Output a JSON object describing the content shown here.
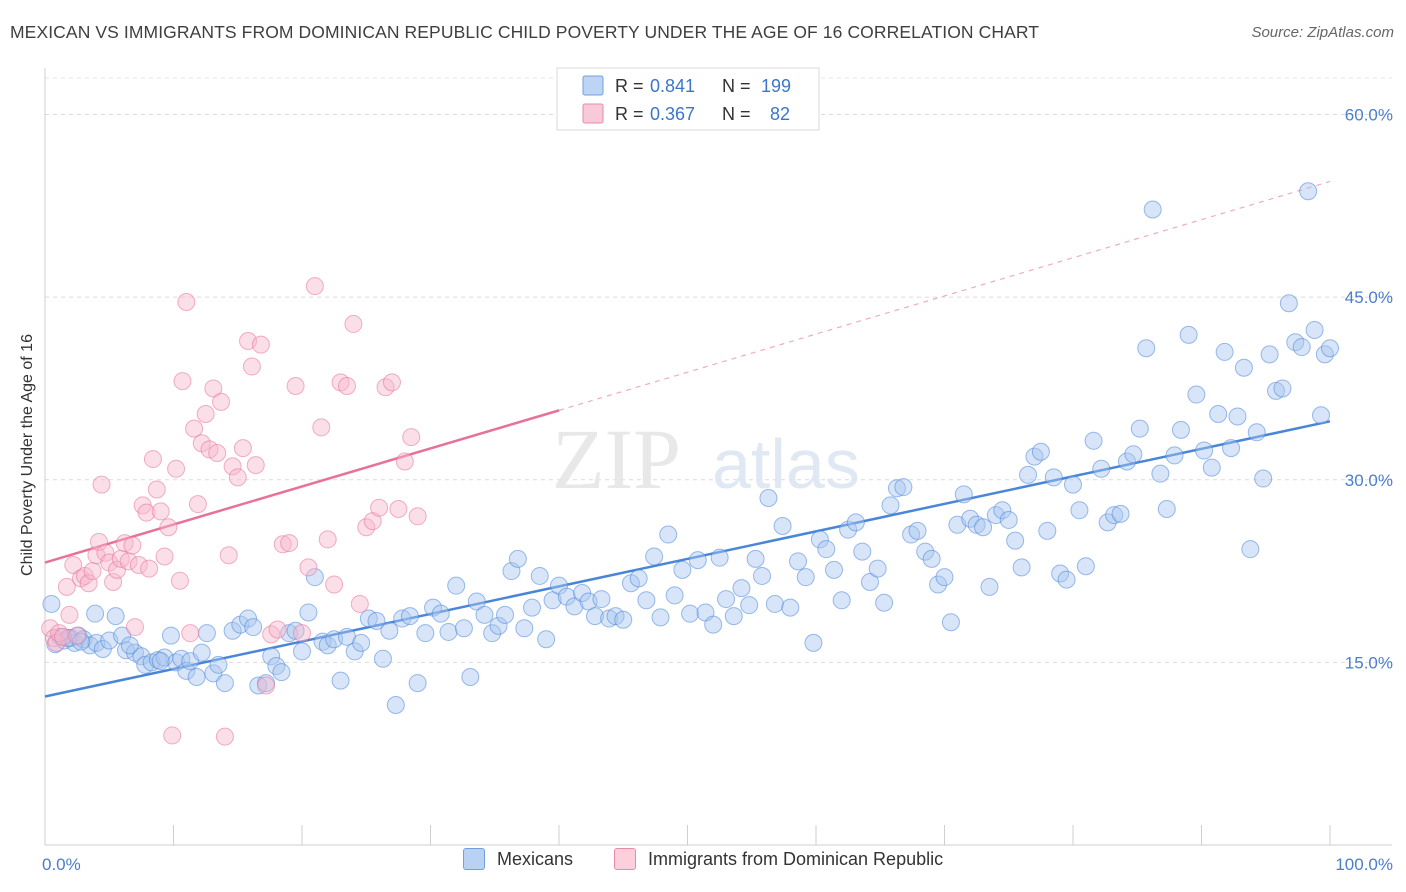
{
  "title": "MEXICAN VS IMMIGRANTS FROM DOMINICAN REPUBLIC CHILD POVERTY UNDER THE AGE OF 16 CORRELATION CHART",
  "source": "Source: ZipAtlas.com",
  "watermark": {
    "zip": "ZIP",
    "atlas": "atlas"
  },
  "legend_top": {
    "rows": [
      {
        "r_label": "R =",
        "r_value": "0.841",
        "n_label": "N =",
        "n_value": "199",
        "color": "#a8c6f0",
        "border": "#6f9fe0"
      },
      {
        "r_label": "R =",
        "r_value": "0.367",
        "n_label": "N =",
        "n_value": "82",
        "color": "#f6b8cb",
        "border": "#e88aa8"
      }
    ]
  },
  "legend_bottom": [
    {
      "label": "Mexicans",
      "color": "#b9d2f4",
      "border": "#6f9fe0"
    },
    {
      "label": "Immigrants from Dominican Republic",
      "color": "#fbcfdc",
      "border": "#e88aa8"
    }
  ],
  "chart_data": {
    "type": "scatter",
    "title": "MEXICAN VS IMMIGRANTS FROM DOMINICAN REPUBLIC CHILD POVERTY UNDER THE AGE OF 16 CORRELATION CHART",
    "xlabel": "",
    "ylabel": "Child Poverty Under the Age of 16",
    "xlim": [
      0,
      100
    ],
    "ylim": [
      0,
      63
    ],
    "x_tick_labels": [
      {
        "value": 0,
        "label": "0.0%"
      },
      {
        "value": 100,
        "label": "100.0%"
      }
    ],
    "y_tick_labels": [
      {
        "value": 15,
        "label": "15.0%"
      },
      {
        "value": 30,
        "label": "30.0%"
      },
      {
        "value": 45,
        "label": "45.0%"
      },
      {
        "value": 60,
        "label": "60.0%"
      }
    ],
    "grid": true,
    "series": [
      {
        "name": "Mexicans",
        "color": "#4a86d8",
        "fill": "#a8c6f0",
        "r": 0.841,
        "n": 199,
        "trend": {
          "x0": 0,
          "y0": 12.2,
          "x1": 100,
          "y1": 34.8,
          "dashed_extension": false
        },
        "points": [
          [
            0.5,
            19.8
          ],
          [
            0.8,
            16.5
          ],
          [
            1.2,
            17.1
          ],
          [
            1.5,
            16.8
          ],
          [
            2.0,
            17.0
          ],
          [
            2.3,
            16.6
          ],
          [
            2.6,
            17.2
          ],
          [
            3.0,
            16.9
          ],
          [
            3.5,
            16.4
          ],
          [
            4.0,
            16.6
          ],
          [
            3.9,
            19.0
          ],
          [
            4.5,
            16.1
          ],
          [
            5.0,
            16.8
          ],
          [
            5.5,
            18.8
          ],
          [
            6.0,
            17.2
          ],
          [
            6.3,
            16.0
          ],
          [
            7.0,
            15.8
          ],
          [
            7.5,
            15.5
          ],
          [
            7.8,
            14.8
          ],
          [
            8.3,
            15.0
          ],
          [
            8.8,
            15.2
          ],
          [
            9.3,
            15.4
          ],
          [
            9.8,
            17.2
          ],
          [
            10.2,
            15.0
          ],
          [
            10.6,
            15.3
          ],
          [
            11.0,
            14.3
          ],
          [
            11.3,
            15.1
          ],
          [
            11.8,
            13.8
          ],
          [
            12.2,
            15.8
          ],
          [
            12.6,
            17.4
          ],
          [
            13.1,
            14.1
          ],
          [
            13.5,
            14.8
          ],
          [
            14.0,
            13.3
          ],
          [
            14.6,
            17.6
          ],
          [
            15.2,
            18.1
          ],
          [
            15.8,
            18.6
          ],
          [
            16.2,
            17.9
          ],
          [
            16.6,
            13.1
          ],
          [
            17.2,
            13.3
          ],
          [
            17.6,
            15.5
          ],
          [
            18.0,
            14.7
          ],
          [
            18.4,
            14.2
          ],
          [
            19.0,
            17.4
          ],
          [
            19.5,
            17.6
          ],
          [
            20.0,
            15.9
          ],
          [
            20.5,
            19.1
          ],
          [
            21.0,
            22.0
          ],
          [
            21.6,
            16.7
          ],
          [
            22.0,
            16.4
          ],
          [
            22.5,
            16.9
          ],
          [
            23.0,
            13.5
          ],
          [
            23.5,
            17.1
          ],
          [
            24.1,
            15.9
          ],
          [
            24.6,
            16.6
          ],
          [
            25.2,
            18.6
          ],
          [
            25.8,
            18.4
          ],
          [
            26.3,
            15.3
          ],
          [
            26.8,
            17.6
          ],
          [
            27.3,
            11.5
          ],
          [
            27.8,
            18.6
          ],
          [
            28.4,
            18.8
          ],
          [
            29.0,
            13.3
          ],
          [
            29.6,
            17.4
          ],
          [
            30.2,
            19.5
          ],
          [
            30.8,
            19.0
          ],
          [
            31.4,
            17.5
          ],
          [
            32.0,
            21.3
          ],
          [
            32.6,
            17.8
          ],
          [
            33.1,
            13.8
          ],
          [
            33.6,
            20.0
          ],
          [
            34.2,
            18.9
          ],
          [
            34.8,
            17.4
          ],
          [
            35.3,
            18.0
          ],
          [
            35.8,
            18.9
          ],
          [
            36.3,
            22.5
          ],
          [
            36.8,
            23.5
          ],
          [
            37.3,
            17.8
          ],
          [
            37.9,
            19.5
          ],
          [
            38.5,
            22.1
          ],
          [
            39.0,
            16.9
          ],
          [
            39.5,
            20.1
          ],
          [
            40.0,
            21.3
          ],
          [
            40.6,
            20.4
          ],
          [
            41.2,
            19.6
          ],
          [
            41.8,
            20.7
          ],
          [
            42.3,
            20.0
          ],
          [
            42.8,
            18.8
          ],
          [
            43.3,
            20.2
          ],
          [
            43.9,
            18.6
          ],
          [
            44.4,
            18.8
          ],
          [
            45.0,
            18.5
          ],
          [
            45.6,
            21.5
          ],
          [
            46.2,
            21.9
          ],
          [
            46.8,
            20.1
          ],
          [
            47.4,
            23.7
          ],
          [
            47.9,
            18.7
          ],
          [
            48.5,
            25.5
          ],
          [
            49.0,
            20.5
          ],
          [
            49.6,
            22.6
          ],
          [
            50.2,
            19.0
          ],
          [
            50.8,
            23.4
          ],
          [
            51.4,
            19.1
          ],
          [
            52.0,
            18.1
          ],
          [
            52.5,
            23.6
          ],
          [
            53.0,
            20.2
          ],
          [
            53.6,
            18.8
          ],
          [
            54.2,
            21.1
          ],
          [
            54.8,
            19.7
          ],
          [
            55.3,
            23.5
          ],
          [
            55.8,
            22.1
          ],
          [
            56.3,
            28.5
          ],
          [
            56.8,
            19.8
          ],
          [
            57.4,
            26.2
          ],
          [
            58.0,
            19.5
          ],
          [
            58.6,
            23.3
          ],
          [
            59.2,
            22.0
          ],
          [
            59.8,
            16.6
          ],
          [
            60.3,
            25.1
          ],
          [
            60.8,
            24.3
          ],
          [
            61.4,
            22.6
          ],
          [
            62.0,
            20.1
          ],
          [
            62.5,
            25.9
          ],
          [
            63.1,
            26.5
          ],
          [
            63.6,
            24.1
          ],
          [
            64.2,
            21.6
          ],
          [
            64.8,
            22.7
          ],
          [
            65.3,
            19.9
          ],
          [
            65.8,
            27.9
          ],
          [
            66.3,
            29.3
          ],
          [
            66.8,
            29.4
          ],
          [
            67.4,
            25.5
          ],
          [
            67.9,
            25.8
          ],
          [
            68.5,
            24.1
          ],
          [
            69.0,
            23.5
          ],
          [
            69.5,
            21.4
          ],
          [
            70.0,
            22.0
          ],
          [
            70.5,
            18.3
          ],
          [
            71.0,
            26.3
          ],
          [
            71.5,
            28.8
          ],
          [
            72.0,
            26.8
          ],
          [
            72.5,
            26.3
          ],
          [
            73.0,
            26.1
          ],
          [
            73.5,
            21.2
          ],
          [
            74.0,
            27.1
          ],
          [
            74.5,
            27.5
          ],
          [
            75.0,
            26.7
          ],
          [
            75.5,
            25.0
          ],
          [
            76.0,
            22.8
          ],
          [
            76.5,
            30.4
          ],
          [
            77.0,
            31.9
          ],
          [
            77.5,
            32.3
          ],
          [
            78.0,
            25.8
          ],
          [
            78.5,
            30.2
          ],
          [
            79.0,
            22.3
          ],
          [
            79.5,
            21.8
          ],
          [
            80.0,
            29.6
          ],
          [
            80.5,
            27.5
          ],
          [
            81.0,
            22.9
          ],
          [
            81.6,
            33.2
          ],
          [
            82.2,
            30.9
          ],
          [
            82.7,
            26.5
          ],
          [
            83.2,
            27.1
          ],
          [
            83.7,
            27.2
          ],
          [
            84.2,
            31.5
          ],
          [
            84.7,
            32.1
          ],
          [
            85.2,
            34.2
          ],
          [
            85.7,
            40.8
          ],
          [
            86.2,
            52.2
          ],
          [
            86.8,
            30.5
          ],
          [
            87.3,
            27.6
          ],
          [
            87.9,
            32.0
          ],
          [
            88.4,
            34.1
          ],
          [
            89.0,
            41.9
          ],
          [
            89.6,
            37.0
          ],
          [
            90.2,
            32.4
          ],
          [
            90.8,
            31.0
          ],
          [
            91.3,
            35.4
          ],
          [
            91.8,
            40.5
          ],
          [
            92.3,
            32.6
          ],
          [
            92.8,
            35.2
          ],
          [
            93.3,
            39.2
          ],
          [
            93.8,
            24.3
          ],
          [
            94.3,
            33.9
          ],
          [
            94.8,
            30.1
          ],
          [
            95.3,
            40.3
          ],
          [
            95.8,
            37.3
          ],
          [
            96.3,
            37.5
          ],
          [
            96.8,
            44.5
          ],
          [
            97.3,
            41.3
          ],
          [
            97.8,
            40.9
          ],
          [
            98.3,
            53.7
          ],
          [
            98.8,
            42.3
          ],
          [
            99.3,
            35.3
          ],
          [
            99.6,
            40.3
          ],
          [
            100.0,
            40.8
          ],
          [
            1.8,
            17.0
          ],
          [
            2.8,
            16.7
          ],
          [
            6.6,
            16.4
          ],
          [
            9.0,
            15.1
          ]
        ]
      },
      {
        "name": "Immigrants from Dominican Republic",
        "color": "#e8719a",
        "fill": "#f6b8cb",
        "r": 0.367,
        "n": 82,
        "trend": {
          "x0": 0,
          "y0": 23.2,
          "x1": 40,
          "y1": 35.7,
          "dashed_extension": true,
          "x_end": 100,
          "y_end": 54.5
        },
        "points": [
          [
            0.4,
            17.8
          ],
          [
            0.7,
            17.0
          ],
          [
            0.9,
            16.6
          ],
          [
            1.1,
            17.4
          ],
          [
            1.4,
            17.1
          ],
          [
            1.7,
            21.2
          ],
          [
            1.9,
            18.9
          ],
          [
            2.2,
            23.0
          ],
          [
            2.5,
            17.2
          ],
          [
            2.8,
            21.9
          ],
          [
            3.1,
            22.1
          ],
          [
            3.4,
            21.5
          ],
          [
            3.7,
            22.5
          ],
          [
            4.0,
            23.8
          ],
          [
            4.2,
            24.9
          ],
          [
            4.4,
            29.6
          ],
          [
            4.7,
            24.0
          ],
          [
            5.0,
            23.2
          ],
          [
            5.3,
            21.6
          ],
          [
            5.6,
            22.6
          ],
          [
            5.9,
            23.5
          ],
          [
            6.2,
            24.8
          ],
          [
            6.5,
            23.3
          ],
          [
            6.8,
            24.6
          ],
          [
            7.0,
            17.9
          ],
          [
            7.3,
            23.0
          ],
          [
            7.6,
            27.9
          ],
          [
            7.9,
            27.3
          ],
          [
            8.1,
            22.7
          ],
          [
            8.4,
            31.7
          ],
          [
            8.7,
            29.2
          ],
          [
            9.0,
            27.4
          ],
          [
            9.3,
            23.7
          ],
          [
            9.6,
            26.1
          ],
          [
            9.9,
            9.0
          ],
          [
            10.2,
            30.9
          ],
          [
            10.5,
            21.7
          ],
          [
            10.7,
            38.1
          ],
          [
            11.0,
            44.6
          ],
          [
            11.3,
            17.4
          ],
          [
            11.6,
            34.2
          ],
          [
            11.9,
            28.0
          ],
          [
            12.2,
            33.0
          ],
          [
            12.5,
            35.4
          ],
          [
            12.8,
            32.5
          ],
          [
            13.1,
            37.5
          ],
          [
            13.4,
            32.2
          ],
          [
            13.7,
            36.4
          ],
          [
            14.0,
            8.9
          ],
          [
            14.3,
            23.8
          ],
          [
            14.6,
            31.1
          ],
          [
            15.0,
            30.2
          ],
          [
            15.4,
            32.6
          ],
          [
            15.8,
            41.4
          ],
          [
            16.1,
            39.3
          ],
          [
            16.4,
            31.2
          ],
          [
            16.8,
            41.1
          ],
          [
            17.2,
            13.1
          ],
          [
            17.6,
            17.3
          ],
          [
            18.1,
            17.7
          ],
          [
            18.5,
            24.7
          ],
          [
            19.0,
            24.8
          ],
          [
            19.5,
            37.7
          ],
          [
            20.0,
            17.4
          ],
          [
            20.5,
            22.8
          ],
          [
            21.0,
            45.9
          ],
          [
            21.5,
            34.3
          ],
          [
            22.0,
            25.1
          ],
          [
            22.5,
            21.4
          ],
          [
            23.0,
            38.0
          ],
          [
            23.5,
            37.7
          ],
          [
            24.0,
            42.8
          ],
          [
            24.5,
            19.8
          ],
          [
            25.0,
            26.1
          ],
          [
            25.5,
            26.6
          ],
          [
            26.0,
            27.7
          ],
          [
            26.5,
            37.6
          ],
          [
            27.0,
            38.0
          ],
          [
            27.5,
            27.6
          ],
          [
            28.0,
            31.5
          ],
          [
            28.5,
            33.5
          ],
          [
            29.0,
            27.0
          ]
        ]
      }
    ]
  }
}
